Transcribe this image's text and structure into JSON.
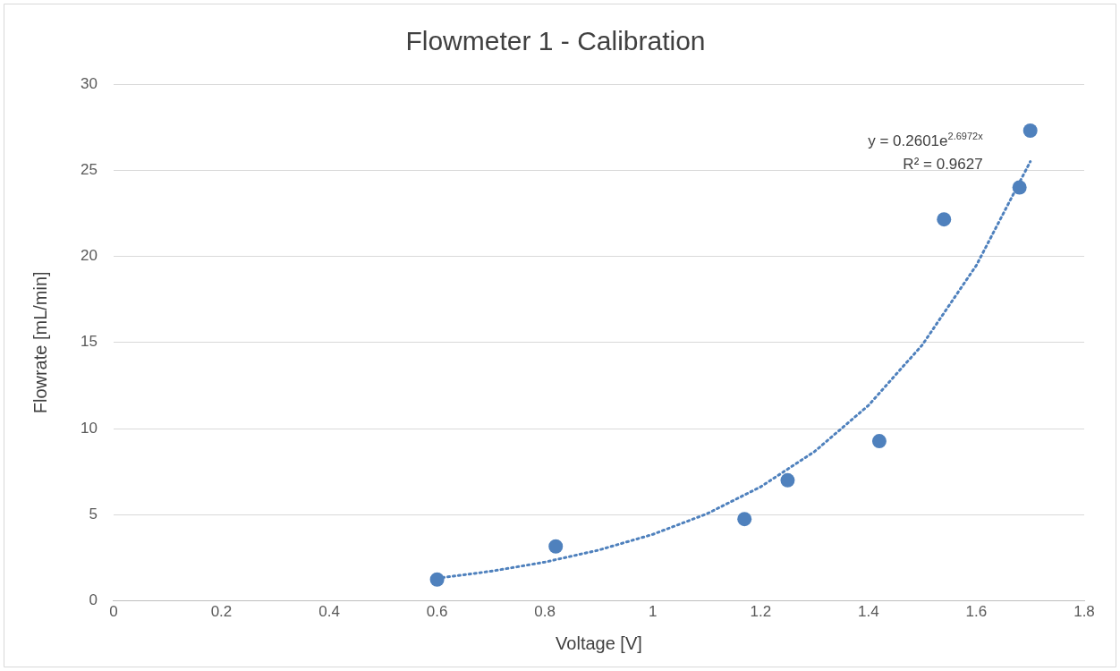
{
  "chart_data": {
    "type": "scatter",
    "title": "Flowmeter 1 - Calibration",
    "xlabel": "Voltage [V]",
    "ylabel": "Flowrate [mL/min]",
    "xlim": [
      0,
      1.8
    ],
    "xticks": [
      0,
      0.2,
      0.4,
      0.6,
      0.8,
      1,
      1.2,
      1.4,
      1.6,
      1.8
    ],
    "ylim": [
      0,
      30
    ],
    "yticks": [
      0,
      5,
      10,
      15,
      20,
      25,
      30
    ],
    "grid": "y",
    "legend": false,
    "annotations": [
      "y = 0.2601e$^{2.6972x}$",
      "R² = 0.9627"
    ],
    "series": [
      {
        "type": "scatter",
        "color": "#4f81bd",
        "marker": "circle",
        "x": [
          0.6,
          0.82,
          1.17,
          1.25,
          1.42,
          1.54,
          1.68,
          1.7
        ],
        "values": [
          1.24,
          3.16,
          4.75,
          7.0,
          9.27,
          22.15,
          24.0,
          27.3
        ]
      },
      {
        "type": "line",
        "color": "#4f81bd",
        "marker": "none",
        "line_style": "dotted",
        "x": [
          0.6,
          0.7,
          0.8,
          0.9,
          1.0,
          1.1,
          1.2,
          1.3,
          1.4,
          1.5,
          1.6,
          1.7
        ],
        "values": [
          1.31,
          1.72,
          2.25,
          2.95,
          3.86,
          5.05,
          6.62,
          8.67,
          11.35,
          14.87,
          19.48,
          25.5
        ]
      }
    ]
  }
}
